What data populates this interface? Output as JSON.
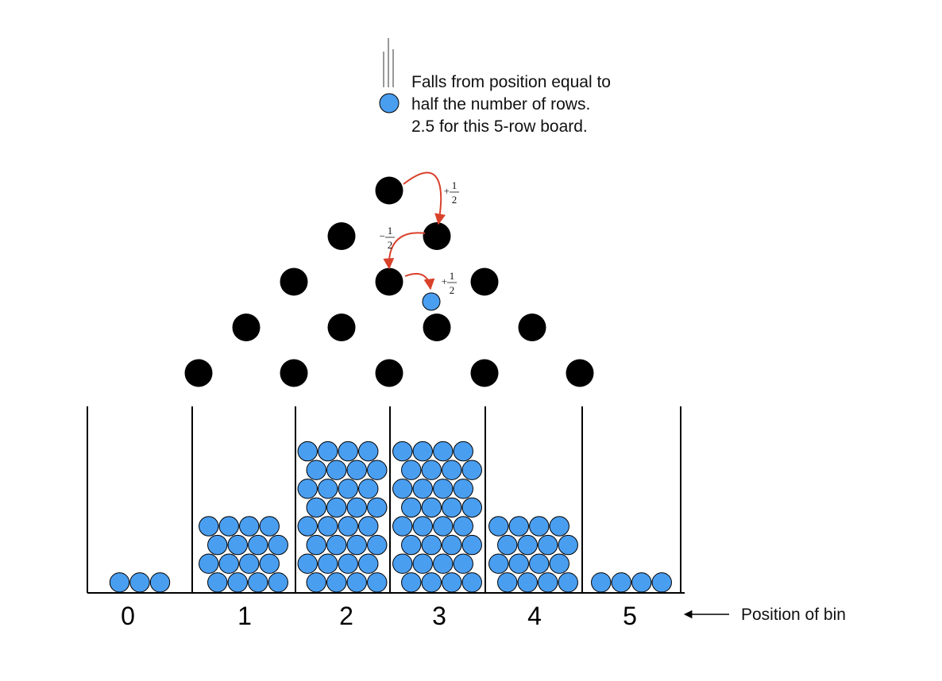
{
  "caption": {
    "lines": [
      "Falls from position equal to",
      "half the number of rows.",
      "2.5 for this 5-row board."
    ]
  },
  "bin_axis": {
    "labels": [
      "0",
      "1",
      "2",
      "3",
      "4",
      "5"
    ],
    "arrow_label": "Position of bin"
  },
  "board": {
    "rows": 5
  },
  "bins": [
    {
      "position": "0",
      "ball_count": 3
    },
    {
      "position": "1",
      "ball_count": 16
    },
    {
      "position": "2",
      "ball_count": 32
    },
    {
      "position": "3",
      "ball_count": 32
    },
    {
      "position": "4",
      "ball_count": 16
    },
    {
      "position": "5",
      "ball_count": 4
    }
  ],
  "steps": [
    {
      "sign": "+",
      "numerator": "1",
      "denominator": "2"
    },
    {
      "sign": "−",
      "numerator": "1",
      "denominator": "2"
    },
    {
      "sign": "+",
      "numerator": "1",
      "denominator": "2"
    }
  ],
  "colors": {
    "ball": "#4a9ef0",
    "peg": "#000000",
    "arrow": "#d9412b",
    "wall": "#000000"
  }
}
